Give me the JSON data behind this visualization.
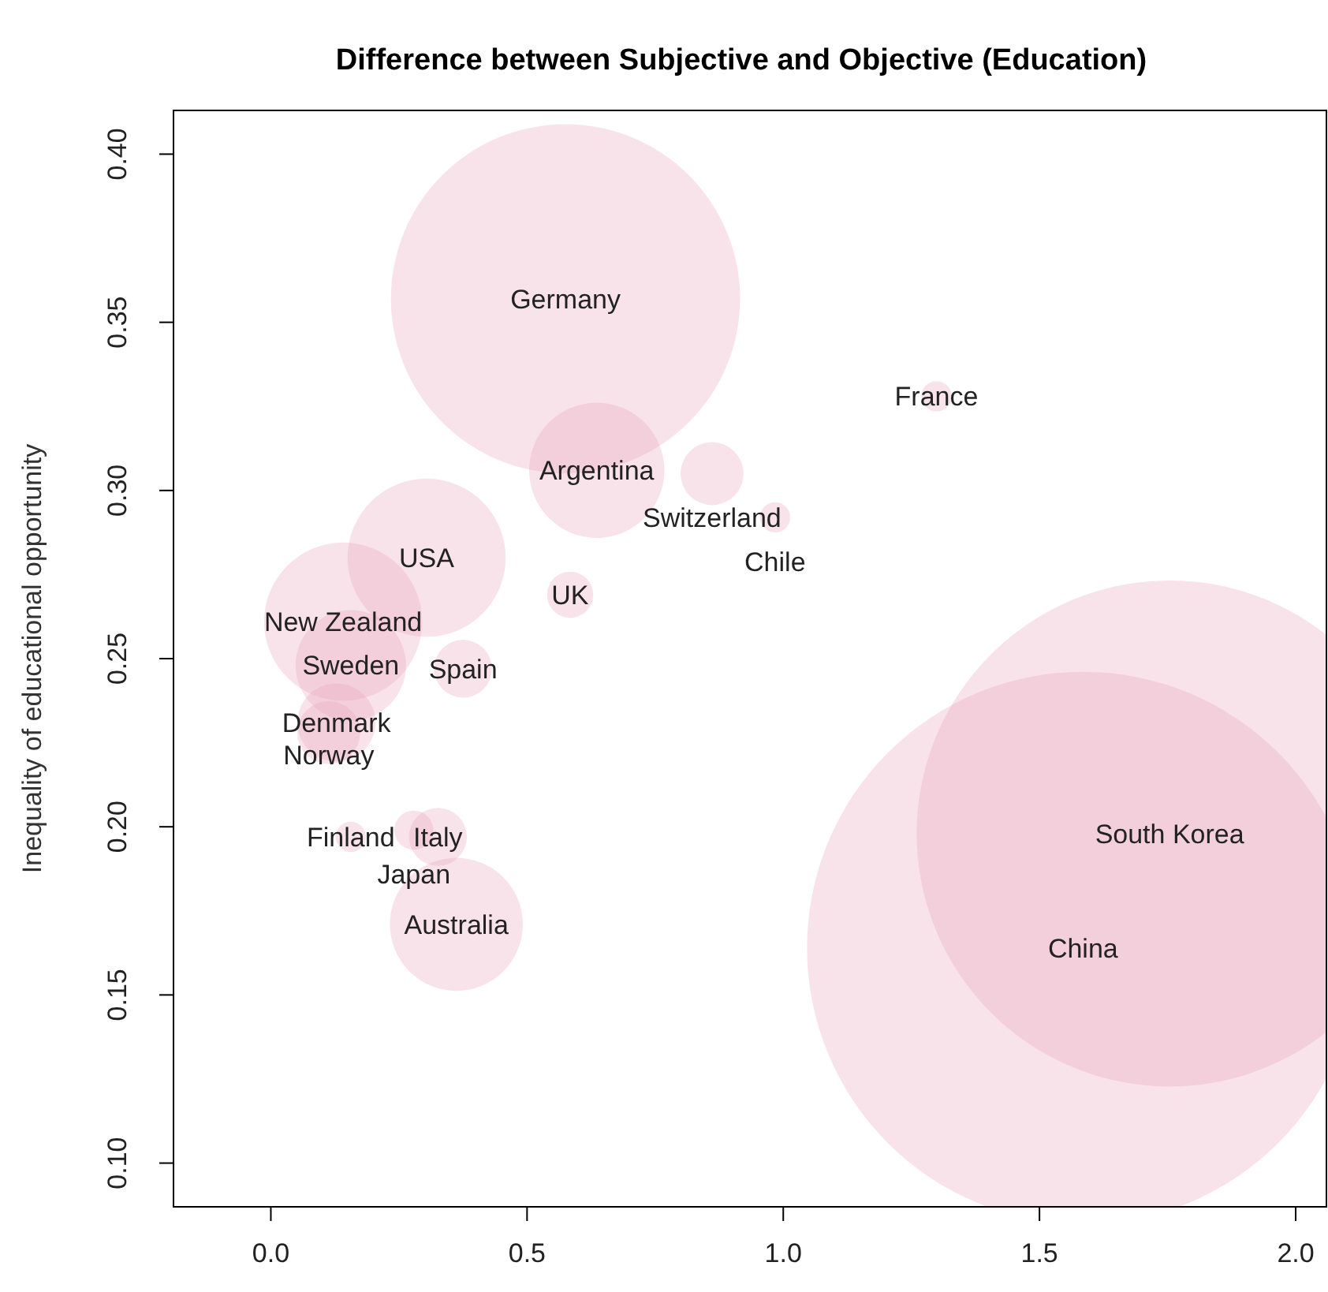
{
  "chart_data": {
    "type": "bubble",
    "title": "Difference between Subjective and Objective (Education)",
    "ylabel": "Inequality of educational opportunity",
    "xlim": [
      -0.19,
      2.06
    ],
    "ylim": [
      0.087,
      0.413
    ],
    "xticks": [
      {
        "value": 0,
        "label": "0.0"
      },
      0.5,
      {
        "value": 1,
        "label": "1.0"
      },
      1.5,
      {
        "value": 2,
        "label": "2.0"
      }
    ],
    "yticks": [
      {
        "value": 0.1,
        "label": "0.10"
      },
      0.15,
      {
        "value": 0.2,
        "label": "0.20"
      },
      0.25,
      {
        "value": 0.3,
        "label": "0.30"
      },
      0.35,
      {
        "value": 0.4,
        "label": "0.40"
      }
    ],
    "grid": false,
    "series": [
      {
        "color": "#e8a3ba",
        "x": [
          0.575,
          0.636,
          0.861,
          1.299,
          0.984,
          0.304,
          0.584,
          0.141,
          0.156,
          0.375,
          0.128,
          0.113,
          0.156,
          0.279,
          0.326,
          0.362,
          1.754,
          1.585
        ],
        "values": [
          0.357,
          0.306,
          0.305,
          0.328,
          0.292,
          0.28,
          0.269,
          0.261,
          0.248,
          0.247,
          0.231,
          0.228,
          0.197,
          0.199,
          0.197,
          0.171,
          0.198,
          0.164
        ],
        "sizes": [
          0.4,
          0.06,
          0.013,
          0.003,
          0.003,
          0.082,
          0.007,
          0.082,
          0.04,
          0.011,
          0.02,
          0.013,
          0.003,
          0.005,
          0.011,
          0.058,
          0.84,
          1
        ]
      }
    ],
    "annotations": [
      {
        "text": "Germany",
        "x": 0.575,
        "y": 0.357
      },
      {
        "text": "Argentina",
        "x": 0.636,
        "y": 0.306
      },
      {
        "text": "Switzerland",
        "x": 0.861,
        "y": 0.305
      },
      {
        "text": "France",
        "x": 1.299,
        "y": 0.328
      },
      {
        "text": "Chile",
        "x": 0.984,
        "y": 0.292
      },
      {
        "text": "USA",
        "x": 0.304,
        "y": 0.28
      },
      {
        "text": "UK",
        "x": 0.584,
        "y": 0.269
      },
      {
        "text": "New Zealand",
        "x": 0.141,
        "y": 0.261
      },
      {
        "text": "Sweden",
        "x": 0.156,
        "y": 0.248
      },
      {
        "text": "Spain",
        "x": 0.375,
        "y": 0.247
      },
      {
        "text": "Denmark",
        "x": 0.128,
        "y": 0.231
      },
      {
        "text": "Norway",
        "x": 0.113,
        "y": 0.228
      },
      {
        "text": "Finland",
        "x": 0.156,
        "y": 0.197
      },
      {
        "text": "Japan",
        "x": 0.279,
        "y": 0.199
      },
      {
        "text": "Italy",
        "x": 0.326,
        "y": 0.197
      },
      {
        "text": "Australia",
        "x": 0.362,
        "y": 0.171
      },
      {
        "text": "South Korea",
        "x": 1.754,
        "y": 0.198
      },
      {
        "text": "China",
        "x": 1.585,
        "y": 0.164
      }
    ]
  }
}
